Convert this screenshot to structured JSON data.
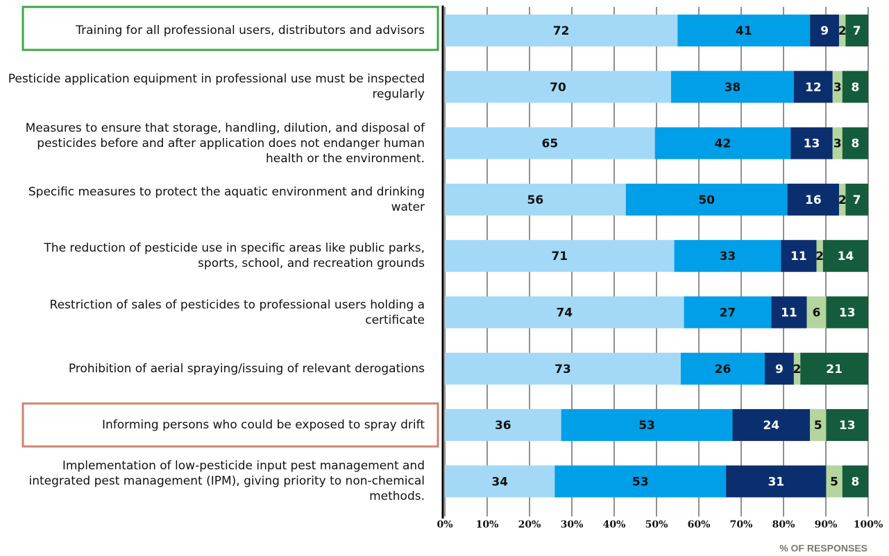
{
  "chart_data": {
    "type": "bar",
    "orientation": "horizontal",
    "stacked": true,
    "normalized": true,
    "categories": [
      "Training for all professional users, distributors and advisors",
      "Pesticide application equipment in professional use must be inspected regularly",
      "Measures to ensure that storage, handling, dilution, and disposal of pesticides before and after application does not endanger human health or the environment.",
      "Specific measures to protect the aquatic environment and drinking water",
      "The reduction of pesticide use in specific areas like public parks, sports, school, and recreation grounds",
      "Restriction of sales of pesticides to professional users holding a certificate",
      "Prohibition of aerial spraying/issuing of relevant derogations",
      "Informing persons who could be exposed to spray drift",
      "Implementation of low-pesticide input pest management and integrated pest management (IPM), giving priority to non-chemical methods."
    ],
    "series": [
      {
        "color": "#a3d9f7",
        "values": [
          72,
          70,
          65,
          56,
          71,
          74,
          73,
          36,
          34
        ]
      },
      {
        "color": "#009fe8",
        "values": [
          41,
          38,
          42,
          50,
          33,
          27,
          26,
          53,
          53
        ]
      },
      {
        "color": "#0b2f6e",
        "values": [
          9,
          12,
          13,
          16,
          11,
          11,
          9,
          24,
          31
        ]
      },
      {
        "color": "#b4d69e",
        "values": [
          2,
          3,
          3,
          2,
          2,
          6,
          2,
          5,
          5
        ]
      },
      {
        "color": "#145c3b",
        "values": [
          7,
          8,
          8,
          7,
          14,
          13,
          21,
          13,
          8
        ]
      }
    ],
    "xlabel": "% OF RESPONSES",
    "xlim": [
      0,
      100
    ],
    "xticks": [
      {
        "value": 0,
        "label": "0%"
      },
      {
        "value": 10,
        "label": "10%"
      },
      {
        "value": 20,
        "label": "20%"
      },
      {
        "value": 30,
        "label": "30%"
      },
      {
        "value": 40,
        "label": "40%"
      },
      {
        "value": 50,
        "label": "50%"
      },
      {
        "value": 60,
        "label": "60%"
      },
      {
        "value": 70,
        "label": "70%"
      },
      {
        "value": 80,
        "label": "80%"
      },
      {
        "value": 90,
        "label": "90%"
      },
      {
        "value": 100,
        "label": "100%"
      }
    ],
    "grid": true
  }
}
